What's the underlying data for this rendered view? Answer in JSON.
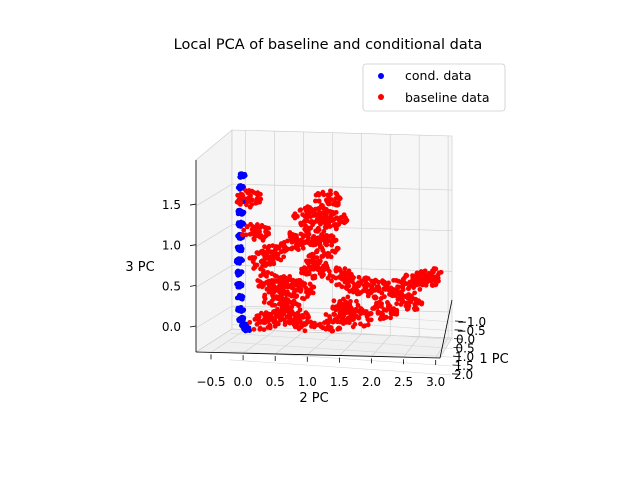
{
  "chart_data": {
    "type": "scatter",
    "projection": "3d",
    "title": "Local PCA of baseline and conditional data",
    "xlabel": "1 PC",
    "ylabel": "2 PC",
    "zlabel": "3 PC",
    "grid": true,
    "legend_position": "top-right",
    "x_ticks": [
      "−1.0",
      "−0.5",
      "0.0",
      "0.5",
      "1.0",
      "1.5",
      "2.0"
    ],
    "y_ticks": [
      "−0.5",
      "0.0",
      "0.5",
      "1.0",
      "1.5",
      "2.0",
      "2.5",
      "3.0"
    ],
    "z_ticks": [
      "0.0",
      "0.5",
      "1.0",
      "1.5"
    ],
    "xlim": [
      -1.2,
      2.1
    ],
    "ylim": [
      -0.8,
      3.1
    ],
    "zlim": [
      -0.4,
      1.9
    ],
    "series": [
      {
        "name": "cond. data",
        "color": "#0000ff",
        "points": [
          [
            0.0,
            -0.02,
            1.85
          ],
          [
            0.0,
            -0.03,
            1.7
          ],
          [
            0.0,
            -0.03,
            1.55
          ],
          [
            0.0,
            -0.04,
            1.4
          ],
          [
            0.0,
            -0.04,
            1.25
          ],
          [
            0.0,
            -0.05,
            1.1
          ],
          [
            0.0,
            -0.05,
            0.95
          ],
          [
            0.0,
            -0.06,
            0.8
          ],
          [
            0.0,
            -0.06,
            0.65
          ],
          [
            0.0,
            -0.06,
            0.5
          ],
          [
            0.0,
            -0.05,
            0.35
          ],
          [
            0.0,
            -0.04,
            0.2
          ],
          [
            0.0,
            -0.02,
            0.08
          ],
          [
            0.0,
            0.02,
            0.0
          ],
          [
            0.0,
            0.06,
            -0.04
          ]
        ]
      },
      {
        "name": "baseline data",
        "color": "#ff0000",
        "points": [
          [
            0.0,
            0.1,
            1.55
          ],
          [
            0.0,
            0.2,
            1.15
          ],
          [
            0.0,
            0.3,
            0.8
          ],
          [
            0.0,
            0.4,
            0.55
          ],
          [
            0.0,
            0.5,
            0.35
          ],
          [
            0.0,
            0.7,
            0.2
          ],
          [
            0.0,
            0.9,
            0.45
          ],
          [
            0.0,
            1.1,
            0.7
          ],
          [
            0.0,
            1.3,
            1.0
          ],
          [
            0.0,
            1.4,
            1.3
          ],
          [
            0.0,
            1.3,
            1.55
          ],
          [
            0.0,
            1.2,
            1.35
          ],
          [
            0.0,
            1.1,
            1.1
          ],
          [
            0.0,
            1.2,
            0.8
          ],
          [
            0.0,
            1.5,
            0.6
          ],
          [
            0.0,
            1.8,
            0.5
          ],
          [
            0.0,
            2.1,
            0.45
          ],
          [
            0.0,
            2.4,
            0.45
          ],
          [
            0.0,
            2.7,
            0.55
          ],
          [
            0.0,
            2.9,
            0.6
          ],
          [
            0.0,
            2.6,
            0.3
          ],
          [
            0.0,
            2.2,
            0.2
          ],
          [
            0.0,
            1.8,
            0.1
          ],
          [
            0.0,
            1.4,
            0.05
          ],
          [
            0.0,
            1.0,
            0.05
          ],
          [
            0.0,
            0.6,
            0.1
          ],
          [
            0.0,
            0.3,
            0.05
          ],
          [
            0.0,
            0.5,
            0.9
          ],
          [
            0.0,
            0.8,
            1.05
          ],
          [
            0.0,
            1.0,
            1.35
          ],
          [
            0.0,
            0.7,
            0.5
          ],
          [
            0.0,
            1.6,
            0.25
          ]
        ]
      }
    ]
  }
}
